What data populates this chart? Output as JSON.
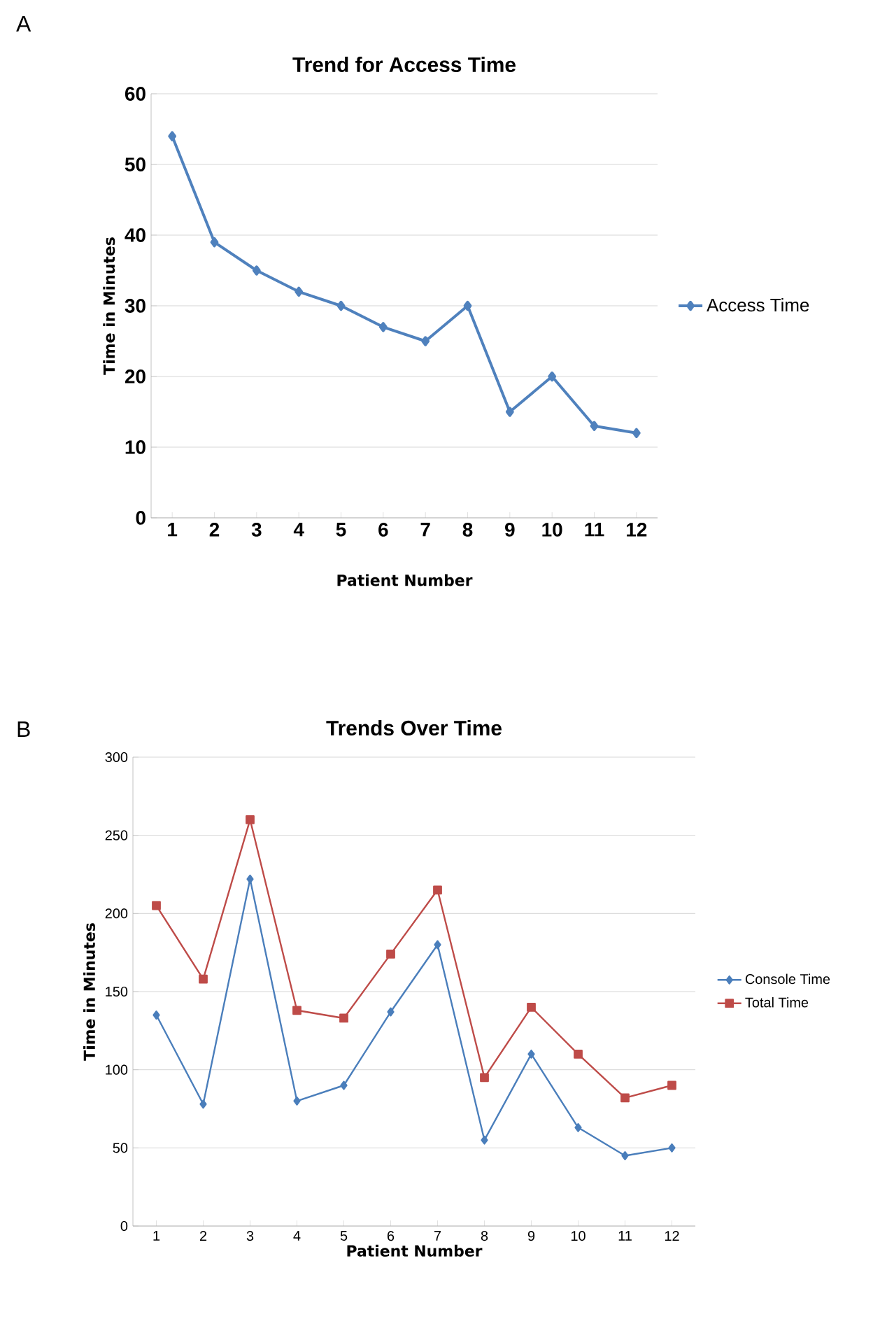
{
  "chart_data": [
    {
      "type": "line",
      "title": "Trend for Access Time",
      "xlabel": "Patient Number",
      "ylabel": "Time in Minutes",
      "annotations": [
        "A"
      ],
      "categories": [
        "1",
        "2",
        "3",
        "4",
        "5",
        "6",
        "7",
        "8",
        "9",
        "10",
        "11",
        "12"
      ],
      "series": [
        {
          "name": "Access Time",
          "color": "#4f81bd",
          "marker": "diamond",
          "values": [
            54,
            39,
            35,
            32,
            30,
            27,
            25,
            30,
            15,
            20,
            13,
            12
          ]
        }
      ],
      "ylim": [
        0,
        60
      ],
      "yticks": [
        0,
        10,
        20,
        30,
        40,
        50,
        60
      ],
      "grid": "y",
      "legend": "right"
    },
    {
      "type": "line",
      "title": "Trends Over Time",
      "xlabel": "Patient Number",
      "ylabel": "Time in Minutes",
      "annotations": [
        "B"
      ],
      "categories": [
        "1",
        "2",
        "3",
        "4",
        "5",
        "6",
        "7",
        "8",
        "9",
        "10",
        "11",
        "12"
      ],
      "series": [
        {
          "name": "Console Time",
          "color": "#4a7ebb",
          "marker": "diamond",
          "values": [
            135,
            78,
            222,
            80,
            90,
            137,
            180,
            55,
            110,
            63,
            45,
            50
          ]
        },
        {
          "name": "Total Time",
          "color": "#be4b48",
          "marker": "square",
          "values": [
            205,
            158,
            260,
            138,
            133,
            174,
            215,
            95,
            140,
            110,
            82,
            90
          ]
        }
      ],
      "ylim": [
        0,
        300
      ],
      "yticks": [
        0,
        50,
        100,
        150,
        200,
        250,
        300
      ],
      "grid": "y",
      "legend": "right"
    }
  ]
}
